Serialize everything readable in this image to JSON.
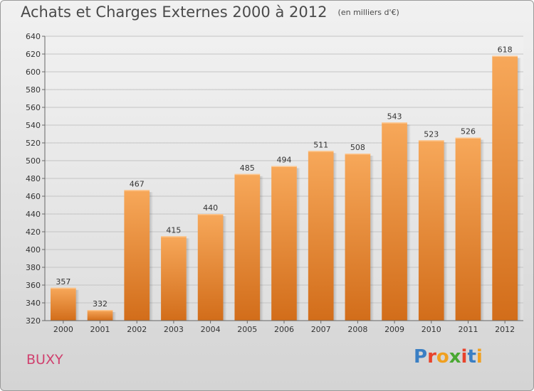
{
  "header": {
    "title": "Achats et Charges Externes 2000 à 2012",
    "subtitle": "(en milliers d'€)"
  },
  "footer": {
    "location": "BUXY",
    "logo_text": "Proxiti",
    "logo_colors": [
      "#3a7fc4",
      "#e8432c",
      "#f0a020",
      "#4aa832",
      "#e8432c",
      "#3a7fc4",
      "#f0a020"
    ]
  },
  "chart_data": {
    "type": "bar",
    "title": "Achats et Charges Externes 2000 à 2012",
    "subtitle": "(en milliers d'€)",
    "categories": [
      "2000",
      "2001",
      "2002",
      "2003",
      "2004",
      "2005",
      "2006",
      "2007",
      "2008",
      "2009",
      "2010",
      "2011",
      "2012"
    ],
    "values": [
      357,
      332,
      467,
      415,
      440,
      485,
      494,
      511,
      508,
      543,
      523,
      526,
      618
    ],
    "ylim": [
      320,
      640
    ],
    "yticks": [
      320,
      340,
      360,
      380,
      400,
      420,
      440,
      460,
      480,
      500,
      520,
      540,
      560,
      580,
      600,
      620,
      640
    ],
    "grid": true,
    "legend": "none",
    "bar_color_top": "#f7a85a",
    "bar_color_bottom": "#d26d1a"
  }
}
